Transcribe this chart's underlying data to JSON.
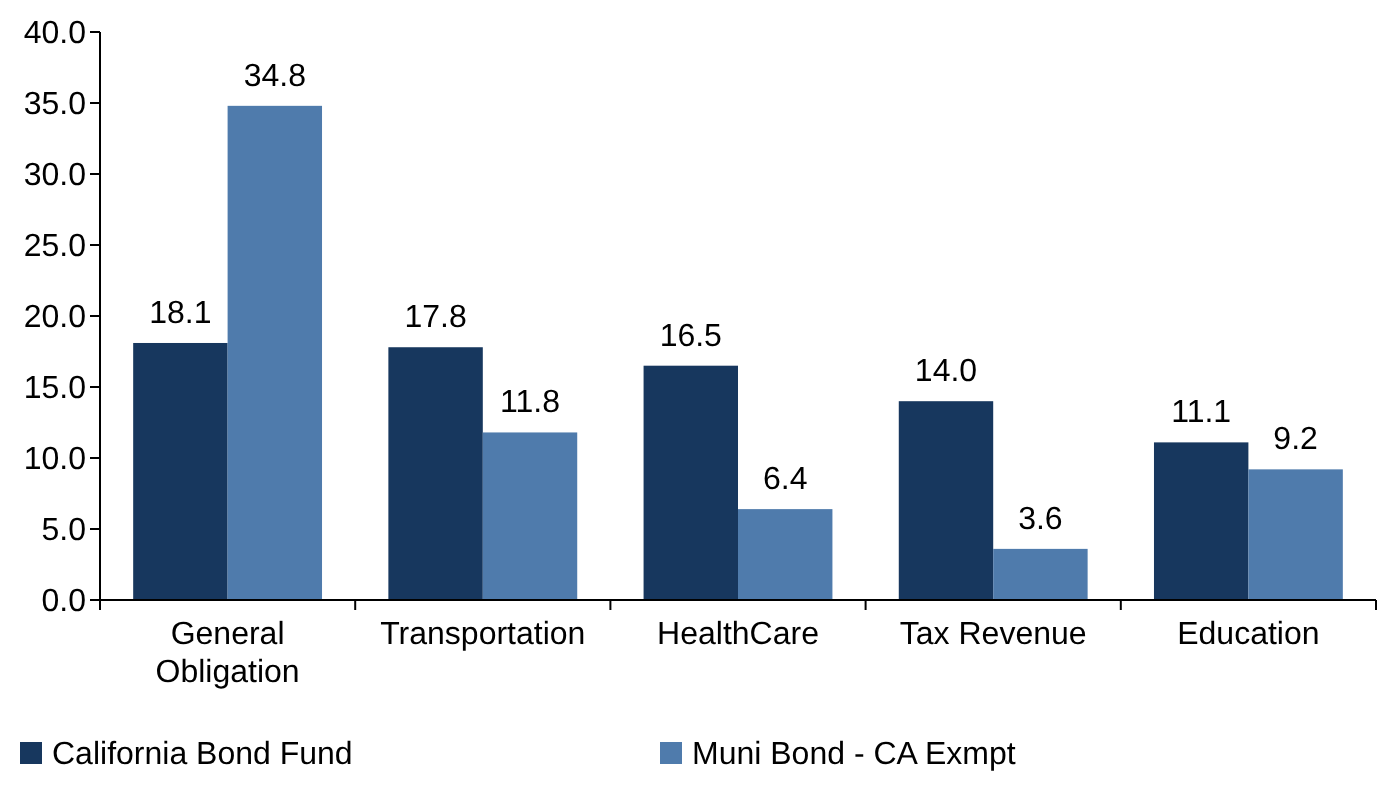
{
  "chart_data": {
    "type": "bar",
    "categories": [
      "General Obligation",
      "Transportation",
      "HealthCare",
      "Tax Revenue",
      "Education"
    ],
    "series": [
      {
        "name": "California Bond Fund",
        "color": "#17375e",
        "values": [
          18.1,
          17.8,
          16.5,
          14.0,
          11.1
        ],
        "value_labels": [
          "18.1",
          "17.8",
          "16.5",
          "14.0",
          "11.1"
        ]
      },
      {
        "name": "Muni Bond - CA Exmpt",
        "color": "#4f7bac",
        "values": [
          34.8,
          11.8,
          6.4,
          3.6,
          9.2
        ],
        "value_labels": [
          "34.8",
          "11.8",
          "6.4",
          "3.6",
          "9.2"
        ]
      }
    ],
    "ylim": [
      0,
      40
    ],
    "yticks": [
      {
        "value": 0,
        "label": "0.0"
      },
      {
        "value": 5,
        "label": "5.0"
      },
      {
        "value": 10,
        "label": "10.0"
      },
      {
        "value": 15,
        "label": "15.0"
      },
      {
        "value": 20,
        "label": "20.0"
      },
      {
        "value": 25,
        "label": "25.0"
      },
      {
        "value": 30,
        "label": "30.0"
      },
      {
        "value": 35,
        "label": "35.0"
      },
      {
        "value": 40,
        "label": "40.0"
      }
    ],
    "grid": false,
    "legend": "bottom"
  }
}
